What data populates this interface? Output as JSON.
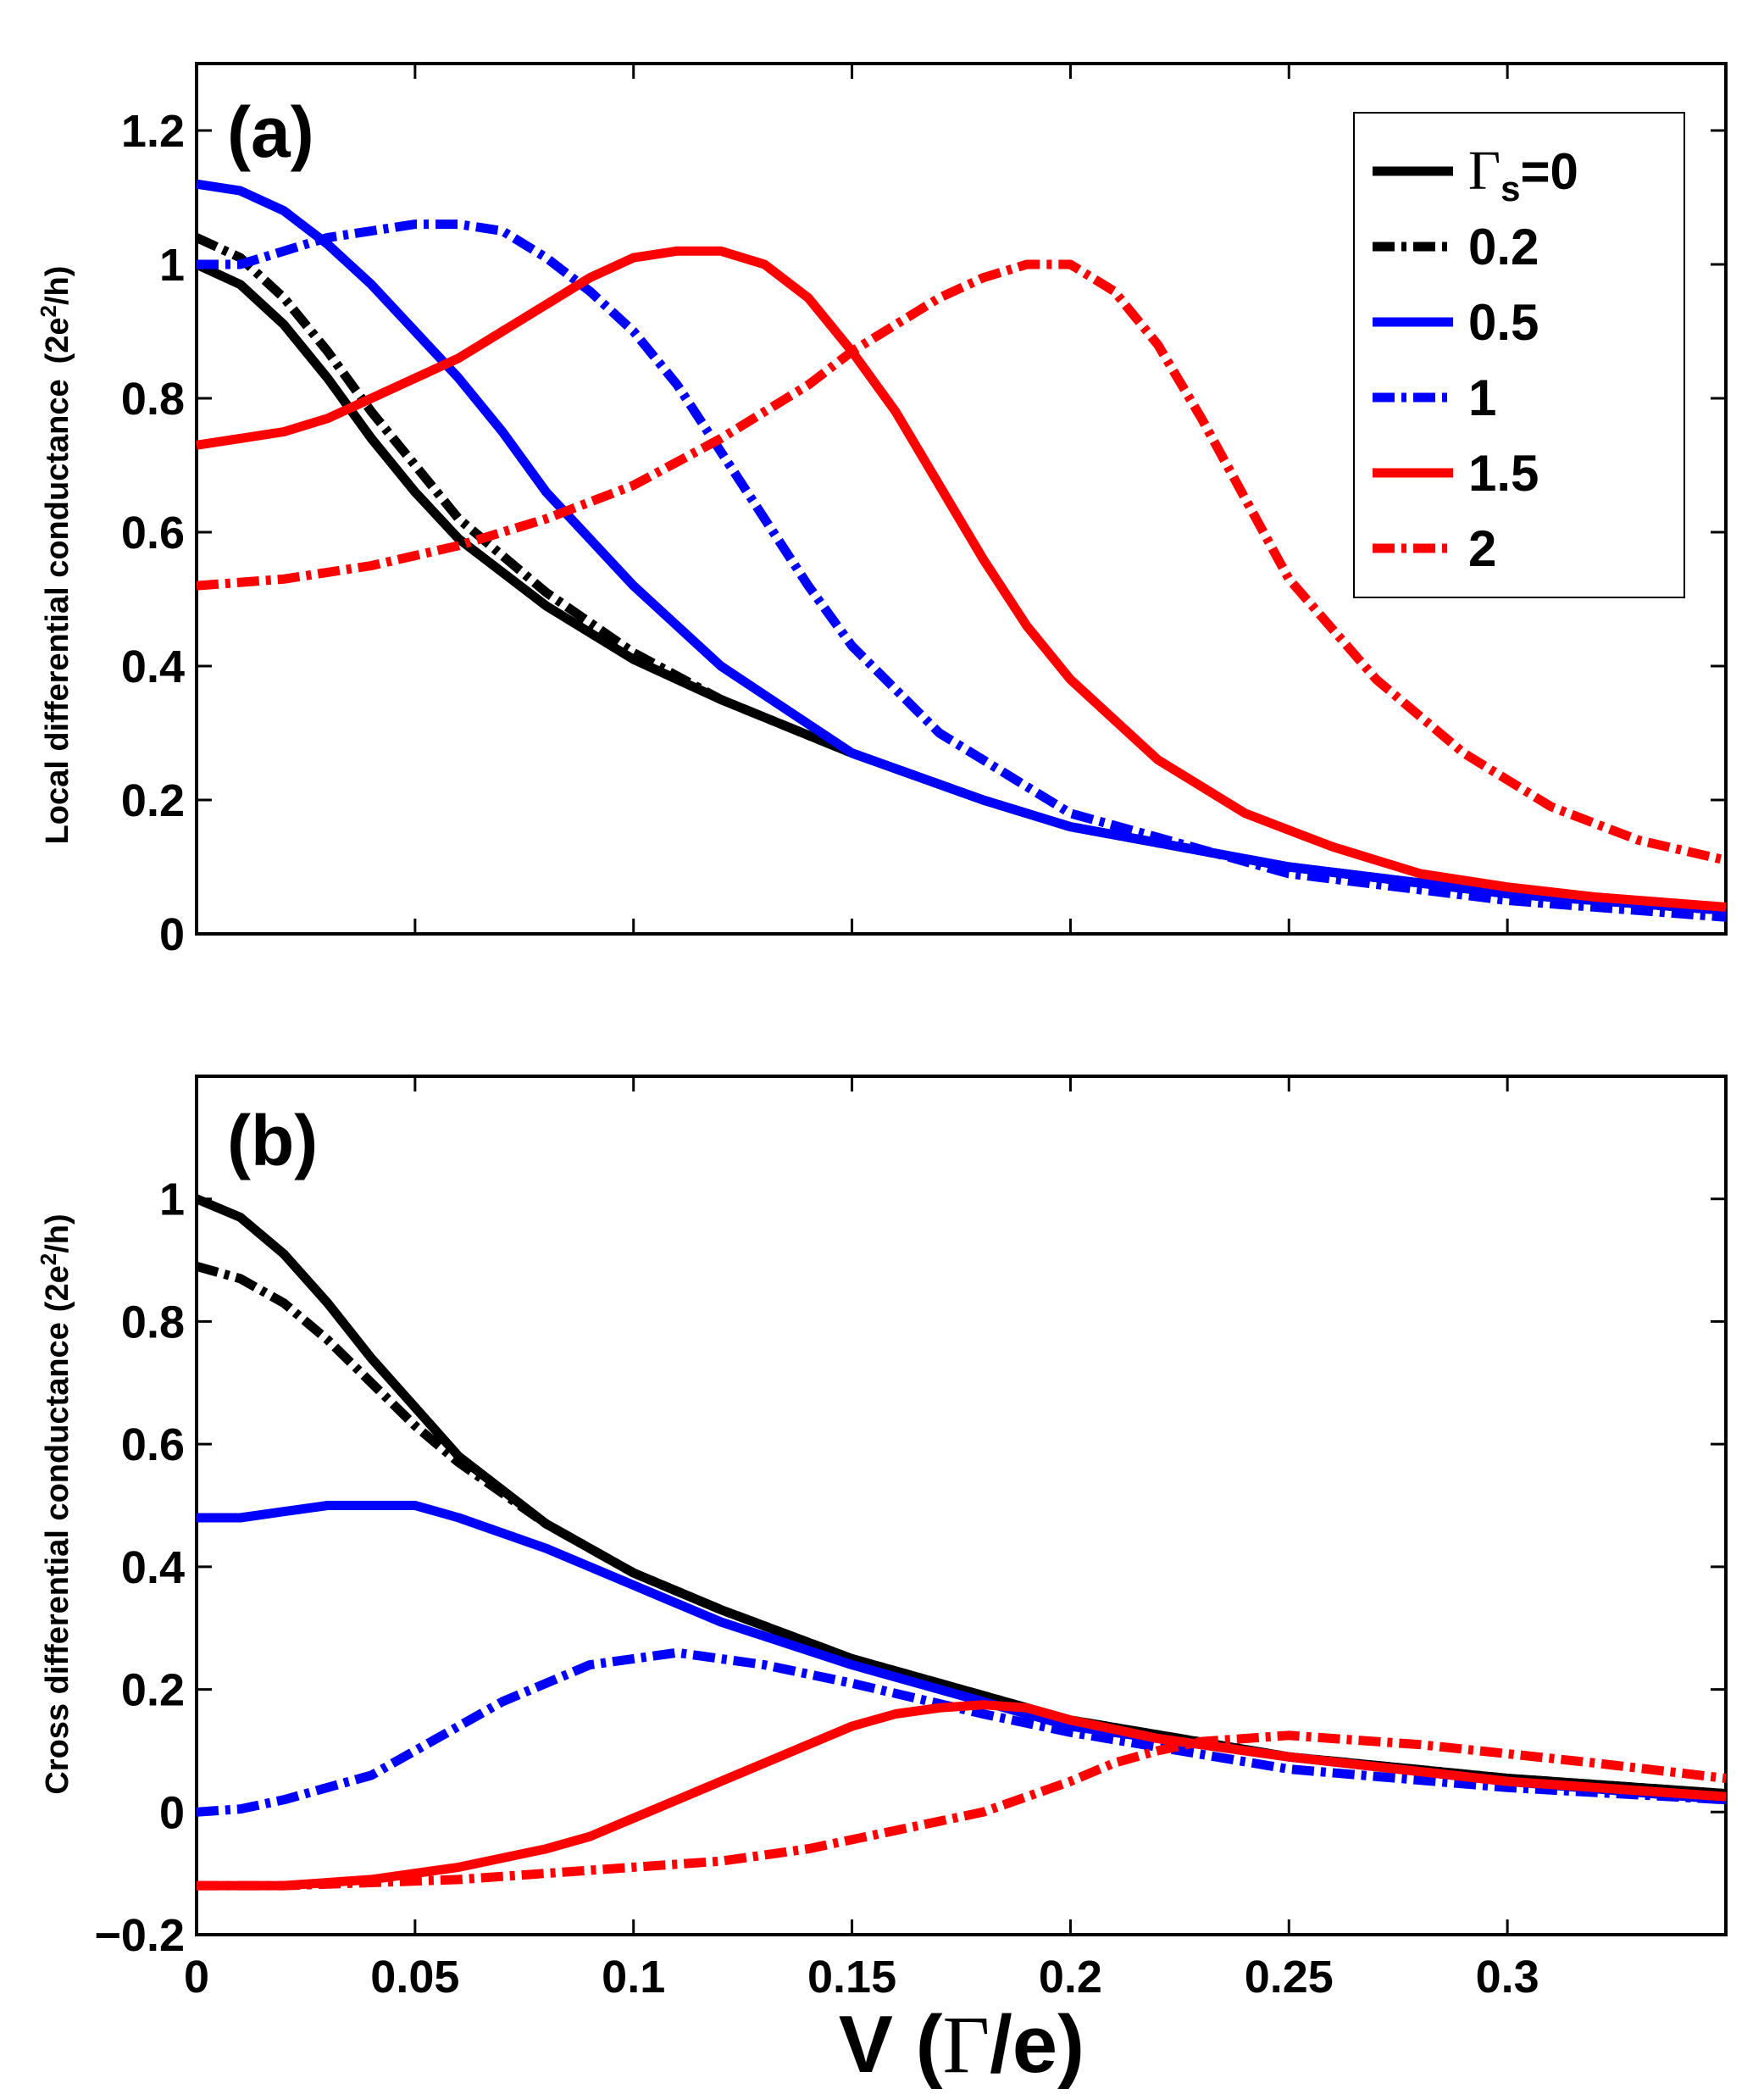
{
  "chart_data": [
    {
      "panel": "(a)",
      "type": "line",
      "ylabel_main": "Local differential conductance",
      "ylabel_unit_pre": "(2e",
      "ylabel_unit_sup": "2",
      "ylabel_unit_post": "/h)",
      "xlim": [
        0,
        0.35
      ],
      "ylim": [
        0,
        1.3
      ],
      "yticks": [
        0,
        0.2,
        0.4,
        0.6,
        0.8,
        1,
        1.2
      ],
      "ytick_labels": [
        "0",
        "0.2",
        "0.4",
        "0.6",
        "0.8",
        "1",
        "1.2"
      ],
      "xticks": [
        0,
        0.05,
        0.1,
        0.15,
        0.2,
        0.25,
        0.3
      ],
      "legend": {
        "symbol": "Γ",
        "subscript": "s",
        "first_suffix": "=0",
        "entries": [
          "Γs=0",
          "0.2",
          "0.5",
          "1",
          "1.5",
          "2"
        ]
      },
      "series": [
        {
          "name": "Γs=0",
          "color": "#000000",
          "style": "solid",
          "x": [
            0,
            0.01,
            0.02,
            0.03,
            0.04,
            0.05,
            0.06,
            0.08,
            0.1,
            0.12,
            0.15,
            0.18,
            0.2,
            0.25,
            0.3,
            0.35
          ],
          "y": [
            1.0,
            0.97,
            0.91,
            0.83,
            0.74,
            0.66,
            0.59,
            0.49,
            0.41,
            0.35,
            0.27,
            0.2,
            0.16,
            0.1,
            0.06,
            0.035
          ]
        },
        {
          "name": "0.2",
          "color": "#000000",
          "style": "dashdot",
          "x": [
            0,
            0.01,
            0.02,
            0.03,
            0.04,
            0.05,
            0.06,
            0.08,
            0.1,
            0.12,
            0.15,
            0.18,
            0.2,
            0.25,
            0.3,
            0.35
          ],
          "y": [
            1.04,
            1.01,
            0.95,
            0.87,
            0.78,
            0.7,
            0.62,
            0.51,
            0.42,
            0.35,
            0.27,
            0.2,
            0.16,
            0.1,
            0.06,
            0.035
          ]
        },
        {
          "name": "0.5",
          "color": "#0000ff",
          "style": "solid",
          "x": [
            0,
            0.01,
            0.02,
            0.03,
            0.04,
            0.05,
            0.06,
            0.07,
            0.08,
            0.1,
            0.12,
            0.15,
            0.18,
            0.2,
            0.25,
            0.3,
            0.35
          ],
          "y": [
            1.12,
            1.11,
            1.08,
            1.03,
            0.97,
            0.9,
            0.83,
            0.75,
            0.66,
            0.52,
            0.4,
            0.27,
            0.2,
            0.16,
            0.1,
            0.06,
            0.035
          ]
        },
        {
          "name": "1",
          "color": "#0000ff",
          "style": "dashdot",
          "x": [
            0,
            0.01,
            0.02,
            0.03,
            0.04,
            0.05,
            0.06,
            0.07,
            0.08,
            0.09,
            0.1,
            0.11,
            0.12,
            0.13,
            0.14,
            0.15,
            0.17,
            0.2,
            0.25,
            0.3,
            0.35
          ],
          "y": [
            1.0,
            1.0,
            1.02,
            1.04,
            1.05,
            1.06,
            1.06,
            1.05,
            1.01,
            0.96,
            0.9,
            0.82,
            0.72,
            0.62,
            0.52,
            0.43,
            0.3,
            0.18,
            0.09,
            0.05,
            0.025
          ]
        },
        {
          "name": "1.5",
          "color": "#ff0000",
          "style": "solid",
          "x": [
            0,
            0.01,
            0.02,
            0.03,
            0.04,
            0.05,
            0.06,
            0.07,
            0.08,
            0.09,
            0.1,
            0.11,
            0.12,
            0.13,
            0.14,
            0.15,
            0.16,
            0.17,
            0.18,
            0.19,
            0.2,
            0.22,
            0.24,
            0.26,
            0.28,
            0.3,
            0.32,
            0.35
          ],
          "y": [
            0.73,
            0.74,
            0.75,
            0.77,
            0.8,
            0.83,
            0.86,
            0.9,
            0.94,
            0.98,
            1.01,
            1.02,
            1.02,
            1.0,
            0.95,
            0.87,
            0.78,
            0.67,
            0.56,
            0.46,
            0.38,
            0.26,
            0.18,
            0.13,
            0.09,
            0.07,
            0.055,
            0.04
          ]
        },
        {
          "name": "2",
          "color": "#ff0000",
          "style": "dashdot",
          "x": [
            0,
            0.02,
            0.04,
            0.06,
            0.08,
            0.1,
            0.12,
            0.14,
            0.15,
            0.16,
            0.17,
            0.18,
            0.19,
            0.2,
            0.21,
            0.22,
            0.23,
            0.24,
            0.25,
            0.27,
            0.29,
            0.31,
            0.33,
            0.35
          ],
          "y": [
            0.52,
            0.53,
            0.55,
            0.58,
            0.62,
            0.67,
            0.74,
            0.82,
            0.87,
            0.91,
            0.95,
            0.98,
            1.0,
            1.0,
            0.96,
            0.88,
            0.77,
            0.65,
            0.53,
            0.38,
            0.27,
            0.19,
            0.14,
            0.11
          ]
        }
      ]
    },
    {
      "panel": "(b)",
      "type": "line",
      "ylabel_main": "Cross differential conductance",
      "ylabel_unit_pre": "(2e",
      "ylabel_unit_sup": "2",
      "ylabel_unit_post": "/h)",
      "xlabel_pre": "V (",
      "xlabel_symbol": "Γ",
      "xlabel_post": "/e)",
      "xlim": [
        0,
        0.35
      ],
      "ylim": [
        -0.2,
        1.2
      ],
      "yticks": [
        -0.2,
        0,
        0.2,
        0.4,
        0.6,
        0.8,
        1
      ],
      "ytick_labels": [
        "−0.2",
        "0",
        "0.2",
        "0.4",
        "0.6",
        "0.8",
        "1"
      ],
      "xticks": [
        0,
        0.05,
        0.1,
        0.15,
        0.2,
        0.25,
        0.3
      ],
      "xtick_labels": [
        "0",
        "0.05",
        "0.1",
        "0.15",
        "0.2",
        "0.25",
        "0.3"
      ],
      "series": [
        {
          "name": "Γs=0",
          "color": "#000000",
          "style": "solid",
          "x": [
            0,
            0.01,
            0.02,
            0.03,
            0.04,
            0.05,
            0.06,
            0.08,
            0.1,
            0.12,
            0.15,
            0.18,
            0.2,
            0.25,
            0.3,
            0.35
          ],
          "y": [
            1.0,
            0.97,
            0.91,
            0.83,
            0.74,
            0.66,
            0.58,
            0.47,
            0.39,
            0.33,
            0.25,
            0.19,
            0.15,
            0.09,
            0.055,
            0.03
          ]
        },
        {
          "name": "0.2",
          "color": "#000000",
          "style": "dashdot",
          "x": [
            0,
            0.01,
            0.02,
            0.03,
            0.04,
            0.05,
            0.06,
            0.08,
            0.1,
            0.12,
            0.15,
            0.18,
            0.2,
            0.25,
            0.3,
            0.35
          ],
          "y": [
            0.89,
            0.87,
            0.83,
            0.77,
            0.7,
            0.63,
            0.57,
            0.47,
            0.39,
            0.33,
            0.25,
            0.19,
            0.15,
            0.09,
            0.055,
            0.03
          ]
        },
        {
          "name": "0.5",
          "color": "#0000ff",
          "style": "solid",
          "x": [
            0,
            0.01,
            0.02,
            0.03,
            0.04,
            0.05,
            0.06,
            0.08,
            0.1,
            0.12,
            0.15,
            0.18,
            0.2,
            0.25,
            0.3,
            0.35
          ],
          "y": [
            0.48,
            0.48,
            0.49,
            0.5,
            0.5,
            0.5,
            0.48,
            0.43,
            0.37,
            0.31,
            0.24,
            0.18,
            0.14,
            0.09,
            0.05,
            0.02
          ]
        },
        {
          "name": "1",
          "color": "#0000ff",
          "style": "dashdot",
          "x": [
            0,
            0.01,
            0.02,
            0.03,
            0.04,
            0.05,
            0.06,
            0.07,
            0.08,
            0.09,
            0.1,
            0.11,
            0.12,
            0.13,
            0.15,
            0.18,
            0.2,
            0.25,
            0.3,
            0.35
          ],
          "y": [
            0.0,
            0.005,
            0.02,
            0.04,
            0.06,
            0.1,
            0.14,
            0.18,
            0.21,
            0.24,
            0.25,
            0.26,
            0.25,
            0.24,
            0.21,
            0.16,
            0.13,
            0.07,
            0.04,
            0.02
          ]
        },
        {
          "name": "1.5",
          "color": "#ff0000",
          "style": "solid",
          "x": [
            0,
            0.02,
            0.04,
            0.06,
            0.08,
            0.09,
            0.1,
            0.11,
            0.12,
            0.13,
            0.14,
            0.15,
            0.16,
            0.17,
            0.18,
            0.19,
            0.2,
            0.22,
            0.25,
            0.3,
            0.35
          ],
          "y": [
            -0.12,
            -0.12,
            -0.11,
            -0.09,
            -0.06,
            -0.04,
            -0.01,
            0.02,
            0.05,
            0.08,
            0.11,
            0.14,
            0.16,
            0.17,
            0.175,
            0.17,
            0.15,
            0.12,
            0.09,
            0.05,
            0.025
          ]
        },
        {
          "name": "2",
          "color": "#ff0000",
          "style": "dashdot",
          "x": [
            0,
            0.02,
            0.04,
            0.06,
            0.08,
            0.1,
            0.12,
            0.14,
            0.16,
            0.18,
            0.2,
            0.21,
            0.22,
            0.23,
            0.24,
            0.25,
            0.26,
            0.28,
            0.3,
            0.32,
            0.35
          ],
          "y": [
            -0.12,
            -0.12,
            -0.115,
            -0.11,
            -0.1,
            -0.09,
            -0.08,
            -0.06,
            -0.03,
            0.0,
            0.05,
            0.08,
            0.1,
            0.115,
            0.12,
            0.125,
            0.12,
            0.11,
            0.095,
            0.08,
            0.055
          ]
        }
      ]
    }
  ]
}
